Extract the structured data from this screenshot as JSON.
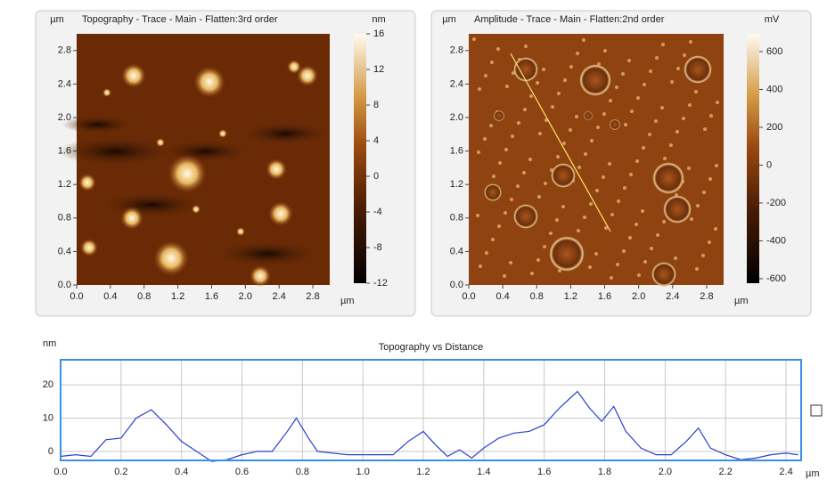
{
  "chart_data": [
    {
      "type": "image",
      "title": "Topography - Trace - Main - Flatten:3rd order",
      "y_unit": "µm",
      "x_unit": "µm",
      "color_unit": "nm",
      "xlim": [
        0,
        3
      ],
      "ylim": [
        0,
        3
      ],
      "xticks": [
        {
          "value": 0,
          "label": "0.0"
        },
        0.4,
        0.8,
        1.2,
        1.6,
        {
          "value": 2,
          "label": "2.0"
        },
        2.4,
        2.8
      ],
      "yticks": [
        {
          "value": 0,
          "label": "0.0"
        },
        0.4,
        0.8,
        1.2,
        1.6,
        {
          "value": 2,
          "label": "2.0"
        },
        2.4,
        2.8
      ],
      "clim": [
        -12,
        16
      ],
      "cticks": [
        16,
        12,
        8,
        4,
        0,
        -4,
        -8,
        -12
      ]
    },
    {
      "type": "image",
      "title": "Amplitude - Trace - Main - Flatten:2nd order",
      "y_unit": "µm",
      "x_unit": "µm",
      "color_unit": "mV",
      "xlim": [
        0,
        3
      ],
      "ylim": [
        0,
        3
      ],
      "xticks": [
        {
          "value": 0,
          "label": "0.0"
        },
        0.4,
        0.8,
        1.2,
        1.6,
        {
          "value": 2,
          "label": "2.0"
        },
        2.4,
        2.8
      ],
      "yticks": [
        {
          "value": 0,
          "label": "0.0"
        },
        0.4,
        0.8,
        1.2,
        1.6,
        {
          "value": 2,
          "label": "2.0"
        },
        2.4,
        2.8
      ],
      "clim": [
        -624,
        694
      ],
      "cticks": [
        600,
        400,
        200,
        0,
        -200,
        -400,
        -600
      ]
    },
    {
      "type": "line",
      "title": "Topography  vs Distance",
      "y_unit": "nm",
      "x_unit": "µm",
      "color": "#2b3fd0",
      "grid": true,
      "xlim": [
        0,
        2.45
      ],
      "ylim": [
        -2.7,
        27.5
      ],
      "xticks": [
        {
          "value": 0,
          "label": "0.0"
        },
        0.2,
        0.4,
        0.6,
        0.8,
        {
          "value": 1,
          "label": "1.0"
        },
        1.2,
        1.4,
        1.6,
        1.8,
        {
          "value": 2,
          "label": "2.0"
        },
        2.2,
        2.4
      ],
      "yticks": [
        0,
        10,
        20
      ],
      "x": [
        0.0,
        0.05,
        0.1,
        0.15,
        0.2,
        0.25,
        0.3,
        0.35,
        0.4,
        0.45,
        0.5,
        0.55,
        0.6,
        0.65,
        0.7,
        0.75,
        0.78,
        0.82,
        0.85,
        0.9,
        0.95,
        1.0,
        1.05,
        1.1,
        1.15,
        1.2,
        1.24,
        1.28,
        1.32,
        1.36,
        1.4,
        1.45,
        1.5,
        1.55,
        1.6,
        1.65,
        1.71,
        1.75,
        1.79,
        1.83,
        1.87,
        1.92,
        1.97,
        2.02,
        2.07,
        2.11,
        2.15,
        2.2,
        2.25,
        2.3,
        2.35,
        2.4,
        2.44
      ],
      "values": [
        -1.5,
        -1,
        -1.5,
        3.5,
        4,
        10,
        12.5,
        8,
        3,
        0,
        -3,
        -2.5,
        -1,
        0,
        0,
        6,
        10,
        4,
        0,
        -0.5,
        -1,
        -1,
        -1,
        -1,
        3,
        6,
        2,
        -1.5,
        0.5,
        -2,
        1,
        4,
        5.5,
        6,
        8,
        13,
        18,
        13,
        9,
        13.5,
        6,
        1,
        -1,
        -1,
        3,
        7,
        1,
        -1,
        -2.5,
        -2,
        -1,
        -0.5,
        -1
      ]
    }
  ]
}
